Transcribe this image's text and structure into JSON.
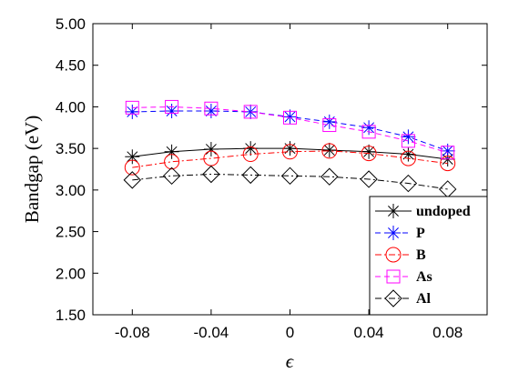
{
  "chart_data": {
    "type": "line",
    "xlabel": "ϵ",
    "ylabel": "Bandgap (eV)",
    "xlim": [
      -0.1,
      0.1
    ],
    "ylim": [
      1.5,
      5.0
    ],
    "x_ticks": [
      "-0.08",
      "-0.04",
      "0",
      "0.04",
      "0.08"
    ],
    "x_tick_values": [
      -0.08,
      -0.04,
      0,
      0.04,
      0.08
    ],
    "y_ticks": [
      "5.00",
      "4.50",
      "4.00",
      "3.50",
      "3.00",
      "2.50",
      "2.00",
      "1.50"
    ],
    "y_tick_values": [
      5.0,
      4.5,
      4.0,
      3.5,
      3.0,
      2.5,
      2.0,
      1.5
    ],
    "x": [
      -0.08,
      -0.06,
      -0.04,
      -0.02,
      0,
      0.02,
      0.04,
      0.06,
      0.08
    ],
    "grid": false,
    "legend_position": "bottom-right",
    "series": [
      {
        "name": "undoped",
        "color": "#000000",
        "marker": "asterisk",
        "dash": "solid",
        "values": [
          3.4,
          3.46,
          3.49,
          3.5,
          3.5,
          3.48,
          3.46,
          3.43,
          3.37
        ]
      },
      {
        "name": "P",
        "color": "#0000ff",
        "marker": "asterisk",
        "dash": "dash",
        "values": [
          3.94,
          3.95,
          3.95,
          3.94,
          3.88,
          3.82,
          3.75,
          3.64,
          3.47
        ]
      },
      {
        "name": "B",
        "color": "#ff0000",
        "marker": "circle",
        "dash": "dashdot",
        "values": [
          3.27,
          3.34,
          3.38,
          3.43,
          3.46,
          3.47,
          3.44,
          3.38,
          3.32
        ]
      },
      {
        "name": "As",
        "color": "#ff00ff",
        "marker": "square",
        "dash": "dash",
        "values": [
          3.99,
          4.0,
          3.98,
          3.94,
          3.87,
          3.78,
          3.7,
          3.59,
          3.45
        ]
      },
      {
        "name": "Al",
        "color": "#000000",
        "marker": "diamond",
        "dash": "dashdot",
        "values": [
          3.12,
          3.17,
          3.19,
          3.18,
          3.17,
          3.16,
          3.13,
          3.08,
          3.01
        ]
      }
    ]
  }
}
